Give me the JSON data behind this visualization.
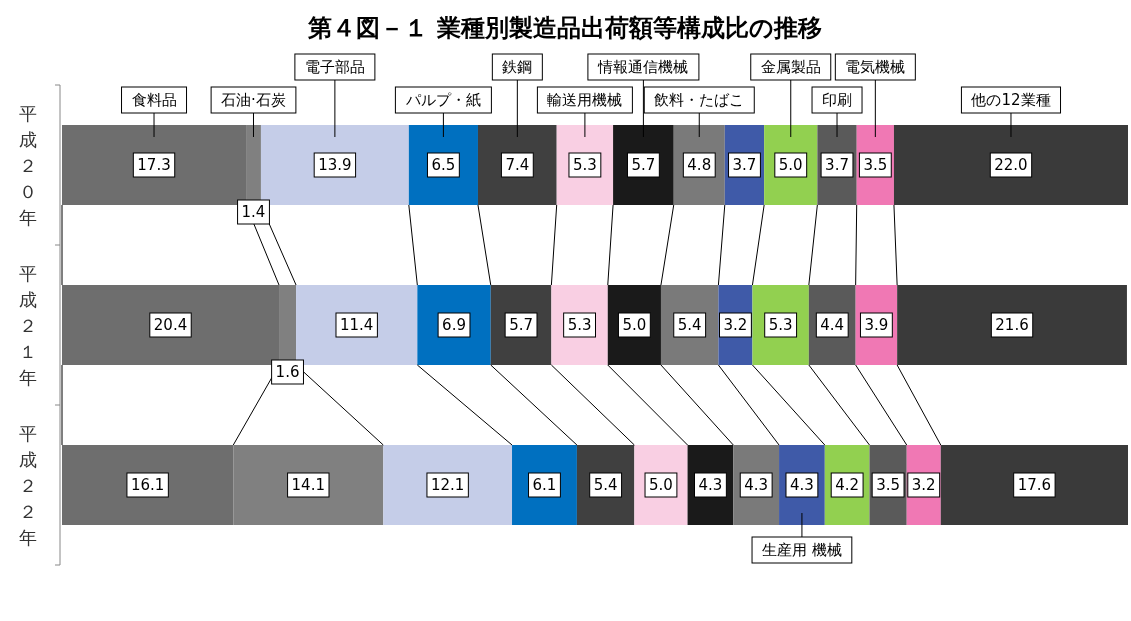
{
  "chart_data": {
    "type": "bar",
    "orientation": "horizontal",
    "stacked": true,
    "title": "第４図－１ 業種別製造品出荷額等構成比の推移",
    "categories": [
      "平成２０年",
      "平成２１年",
      "平成２２年"
    ],
    "series": [
      {
        "name": "食料品",
        "color": "#6e6e6e",
        "values": [
          17.3,
          20.4,
          16.1
        ],
        "value_labels": [
          "17.3",
          "20.4",
          "16.1"
        ]
      },
      {
        "name": "石油·石炭",
        "color": "#808080",
        "values": [
          1.4,
          1.6,
          14.1
        ],
        "value_labels": [
          "1.4",
          "1.6",
          "14.1"
        ]
      },
      {
        "name": "電子部品",
        "color": "#c5cde8",
        "values": [
          13.9,
          11.4,
          12.1
        ],
        "value_labels": [
          "13.9",
          "11.4",
          "12.1"
        ]
      },
      {
        "name": "パルプ・紙",
        "color": "#0070c0",
        "values": [
          6.5,
          6.9,
          6.1
        ],
        "value_labels": [
          "6.5",
          "6.9",
          "6.1"
        ]
      },
      {
        "name": "鉄鋼",
        "color": "#404040",
        "values": [
          7.4,
          5.7,
          5.4
        ],
        "value_labels": [
          "7.4",
          "5.7",
          "5.4"
        ]
      },
      {
        "name": "輸送用機械",
        "color": "#f9cfe3",
        "values": [
          5.3,
          5.3,
          5.0
        ],
        "value_labels": [
          "5.3",
          "5.3",
          "5.0"
        ]
      },
      {
        "name": "情報通信機械",
        "color": "#1a1a1a",
        "values": [
          5.7,
          5.0,
          4.3
        ],
        "value_labels": [
          "5.7",
          "5.0",
          "4.3"
        ]
      },
      {
        "name": "飲料・たばこ",
        "color": "#7a7a7a",
        "values": [
          4.8,
          5.4,
          4.3
        ],
        "value_labels": [
          "4.8",
          "5.4",
          "4.3"
        ]
      },
      {
        "name": "生産用 機械",
        "color": "#3f5aa8",
        "values": [
          3.7,
          3.2,
          4.3
        ],
        "value_labels": [
          "3.7",
          "3.2",
          "4.3"
        ]
      },
      {
        "name": "金属製品",
        "color": "#92d050",
        "values": [
          5.0,
          5.3,
          4.2
        ],
        "value_labels": [
          "5.0",
          "5.3",
          "4.2"
        ]
      },
      {
        "name": "印刷",
        "color": "#5a5a5a",
        "values": [
          3.7,
          4.4,
          3.5
        ],
        "value_labels": [
          "3.7",
          "4.4",
          "3.5"
        ]
      },
      {
        "name": "電気機械",
        "color": "#f078b4",
        "values": [
          3.5,
          3.9,
          3.2
        ],
        "value_labels": [
          "3.5",
          "3.9",
          "3.2"
        ]
      },
      {
        "name": "他の12業種",
        "color": "#3a3a3a",
        "values": [
          22.0,
          21.6,
          17.6
        ],
        "value_labels": [
          "22.0",
          "21.6",
          "17.6"
        ]
      }
    ]
  }
}
